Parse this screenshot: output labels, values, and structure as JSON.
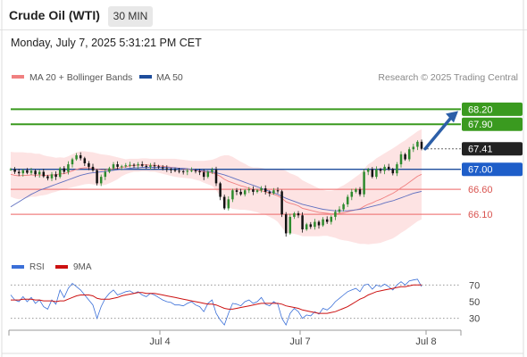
{
  "header": {
    "title": "Crude Oil (WTI)",
    "timeframe": "30 MIN",
    "datetime": "Monday, July 7, 2025 5:31:21 PM CET"
  },
  "legend": {
    "ma20": "MA 20 + Bollinger Bands",
    "ma50": "MA 50",
    "source": "Research © 2025 Trading Central"
  },
  "colors": {
    "green": "#3a9a1f",
    "blue": "#1e4d9c",
    "red": "#f08080",
    "band": "#fde3e3",
    "current_bg": "#222222",
    "arrow": "#2c5fa8"
  },
  "chart_data": [
    {
      "type": "line",
      "title": "",
      "x_ticks": [
        "Jul 4",
        "Jul 7",
        "Jul 8"
      ],
      "ylim": [
        65.3,
        68.6
      ],
      "levels": [
        {
          "value": 68.2,
          "label": "68.20",
          "kind": "resistance"
        },
        {
          "value": 67.9,
          "label": "67.90",
          "kind": "resistance"
        },
        {
          "value": 67.41,
          "label": "67.41",
          "kind": "current"
        },
        {
          "value": 67.0,
          "label": "67.00",
          "kind": "pivot"
        },
        {
          "value": 66.6,
          "label": "66.60",
          "kind": "support"
        },
        {
          "value": 66.1,
          "label": "66.10",
          "kind": "support"
        }
      ],
      "series": [
        {
          "name": "MA 20 + Bollinger Bands",
          "color": "#f08080"
        },
        {
          "name": "MA 50",
          "color": "#1e4d9c"
        }
      ],
      "price": [
        67.0,
        66.95,
        66.92,
        66.98,
        66.93,
        66.97,
        66.9,
        66.95,
        66.86,
        66.82,
        66.9,
        66.85,
        67.02,
        66.95,
        67.1,
        67.2,
        67.28,
        67.22,
        67.12,
        67.05,
        66.98,
        66.72,
        66.85,
        66.95,
        67.02,
        67.1,
        67.05,
        67.06,
        67.08,
        67.09,
        67.08,
        67.1,
        67.07,
        67.05,
        67.08,
        67.06,
        67.04,
        67.02,
        67.0,
        66.99,
        66.97,
        66.96,
        66.95,
        66.97,
        66.98,
        66.96,
        66.94,
        66.85,
        66.95,
        66.99,
        66.72,
        66.45,
        66.22,
        66.4,
        66.58,
        66.55,
        66.5,
        66.58,
        66.6,
        66.55,
        66.58,
        66.62,
        66.55,
        66.52,
        66.58,
        66.56,
        66.1,
        65.72,
        66.05,
        66.12,
        66.08,
        65.8,
        65.9,
        65.85,
        65.95,
        65.88,
        66.0,
        65.95,
        66.05,
        66.15,
        66.2,
        66.3,
        66.45,
        66.55,
        66.6,
        66.5,
        66.95,
        67.0,
        66.85,
        67.0,
        66.97,
        67.05,
        67.0,
        66.92,
        67.1,
        67.3,
        67.2,
        67.4,
        67.45,
        67.55,
        67.41
      ],
      "ma20": [
        66.9,
        66.88,
        66.87,
        66.88,
        66.88,
        66.89,
        66.88,
        66.89,
        66.88,
        66.88,
        66.89,
        66.89,
        66.91,
        66.91,
        66.94,
        66.97,
        67.0,
        67.02,
        67.03,
        67.03,
        67.02,
        67.0,
        66.99,
        66.99,
        67.0,
        67.01,
        67.02,
        67.04,
        67.05,
        67.07,
        67.08,
        67.08,
        67.09,
        67.09,
        67.08,
        67.08,
        67.07,
        67.06,
        67.05,
        67.04,
        67.03,
        67.02,
        67.01,
        67.0,
        66.99,
        66.98,
        66.97,
        66.95,
        66.94,
        66.93,
        66.9,
        66.86,
        66.8,
        66.76,
        66.73,
        66.7,
        66.67,
        66.65,
        66.62,
        66.6,
        66.59,
        66.57,
        66.55,
        66.52,
        66.5,
        66.47,
        66.42,
        66.35,
        66.32,
        66.3,
        66.27,
        66.22,
        66.2,
        66.18,
        66.16,
        66.14,
        66.13,
        66.12,
        66.11,
        66.11,
        66.12,
        66.13,
        66.15,
        66.17,
        66.19,
        66.21,
        66.26,
        66.3,
        66.33,
        66.37,
        66.4,
        66.44,
        66.48,
        66.52,
        66.57,
        66.63,
        66.68,
        66.74,
        66.8,
        66.86,
        66.9
      ],
      "ma50": [
        66.25,
        66.3,
        66.35,
        66.4,
        66.45,
        66.5,
        66.54,
        66.58,
        66.61,
        66.64,
        66.67,
        66.7,
        66.73,
        66.76,
        66.79,
        66.82,
        66.85,
        66.88,
        66.9,
        66.92,
        66.93,
        66.94,
        66.95,
        66.96,
        66.97,
        66.98,
        66.99,
        67.0,
        67.01,
        67.02,
        67.03,
        67.03,
        67.04,
        67.04,
        67.04,
        67.04,
        67.04,
        67.04,
        67.04,
        67.03,
        67.03,
        67.02,
        67.02,
        67.01,
        67.0,
        66.99,
        66.98,
        66.97,
        66.96,
        66.95,
        66.93,
        66.91,
        66.89,
        66.86,
        66.83,
        66.8,
        66.77,
        66.74,
        66.71,
        66.68,
        66.65,
        66.62,
        66.59,
        66.56,
        66.53,
        66.5,
        66.46,
        66.42,
        66.39,
        66.36,
        66.33,
        66.3,
        66.28,
        66.26,
        66.24,
        66.22,
        66.2,
        66.19,
        66.18,
        66.17,
        66.17,
        66.17,
        66.17,
        66.18,
        66.19,
        66.2,
        66.22,
        66.24,
        66.26,
        66.28,
        66.3,
        66.33,
        66.35,
        66.37,
        66.4,
        66.43,
        66.46,
        66.49,
        66.52,
        66.54,
        66.56
      ],
      "bollinger_width": [
        0.45,
        0.46,
        0.47,
        0.46,
        0.45,
        0.44,
        0.43,
        0.42,
        0.4,
        0.38,
        0.36,
        0.34,
        0.33,
        0.32,
        0.32,
        0.33,
        0.34,
        0.34,
        0.33,
        0.32,
        0.32,
        0.32,
        0.31,
        0.3,
        0.28,
        0.25,
        0.22,
        0.18,
        0.15,
        0.14,
        0.13,
        0.13,
        0.13,
        0.13,
        0.13,
        0.13,
        0.14,
        0.15,
        0.16,
        0.17,
        0.18,
        0.18,
        0.18,
        0.18,
        0.18,
        0.19,
        0.2,
        0.22,
        0.24,
        0.26,
        0.32,
        0.4,
        0.48,
        0.52,
        0.52,
        0.5,
        0.48,
        0.46,
        0.44,
        0.44,
        0.45,
        0.46,
        0.46,
        0.47,
        0.49,
        0.52,
        0.58,
        0.62,
        0.6,
        0.59,
        0.58,
        0.56,
        0.54,
        0.52,
        0.5,
        0.48,
        0.46,
        0.45,
        0.46,
        0.48,
        0.52,
        0.55,
        0.58,
        0.62,
        0.66,
        0.7,
        0.75,
        0.8,
        0.82,
        0.85,
        0.87,
        0.88,
        0.89,
        0.9,
        0.9,
        0.9,
        0.9,
        0.9,
        0.9,
        0.9,
        0.9
      ]
    },
    {
      "type": "line",
      "title": "",
      "ylim": [
        20,
        80
      ],
      "y_ticks": [
        70,
        50,
        30
      ],
      "guides": [
        70,
        30
      ],
      "series": [
        {
          "name": "RSI",
          "color": "#3a6fd8",
          "values": [
            58,
            52,
            50,
            56,
            50,
            55,
            48,
            52,
            44,
            41,
            52,
            47,
            64,
            55,
            66,
            72,
            68,
            64,
            58,
            52,
            46,
            30,
            44,
            54,
            60,
            64,
            58,
            60,
            62,
            63,
            60,
            62,
            58,
            56,
            60,
            58,
            55,
            52,
            50,
            49,
            46,
            46,
            45,
            48,
            50,
            46,
            44,
            38,
            48,
            52,
            36,
            28,
            22,
            36,
            48,
            47,
            45,
            50,
            52,
            48,
            50,
            55,
            47,
            45,
            50,
            47,
            30,
            22,
            36,
            42,
            38,
            30,
            34,
            33,
            38,
            35,
            42,
            40,
            44,
            50,
            54,
            58,
            62,
            64,
            66,
            62,
            70,
            71,
            65,
            70,
            68,
            71,
            68,
            64,
            70,
            74,
            70,
            75,
            76,
            77,
            68
          ]
        },
        {
          "name": "9MA",
          "color": "#cc1111",
          "values": [
            52,
            52,
            52,
            53,
            53,
            53,
            52,
            52,
            51,
            51,
            51,
            50,
            51,
            51,
            53,
            55,
            57,
            58,
            58,
            58,
            57,
            54,
            53,
            53,
            53,
            54,
            55,
            57,
            58,
            59,
            60,
            61,
            61,
            60,
            60,
            60,
            59,
            58,
            57,
            56,
            55,
            54,
            53,
            52,
            51,
            50,
            49,
            48,
            47,
            47,
            46,
            44,
            42,
            41,
            41,
            42,
            43,
            44,
            45,
            46,
            47,
            48,
            48,
            48,
            48,
            48,
            47,
            45,
            44,
            43,
            42,
            40,
            39,
            38,
            37,
            36,
            36,
            36,
            37,
            38,
            40,
            42,
            44,
            47,
            50,
            53,
            55,
            58,
            60,
            62,
            63,
            64,
            65,
            66,
            67,
            68,
            68,
            69,
            70,
            70,
            70
          ]
        }
      ]
    }
  ]
}
